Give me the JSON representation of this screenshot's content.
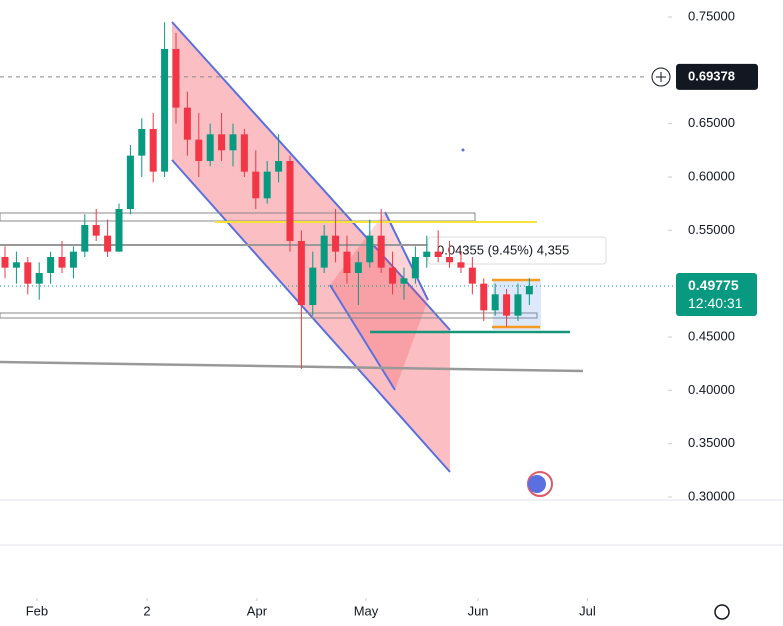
{
  "chart_data": {
    "type": "candlestick",
    "x": [
      0,
      1,
      2,
      3,
      4,
      5,
      6,
      7,
      8,
      9,
      10,
      11,
      12,
      13,
      14,
      15,
      16,
      17,
      18,
      19,
      20,
      21,
      22,
      23,
      24,
      25,
      26,
      27,
      28,
      29,
      30,
      31,
      32,
      33,
      34,
      35,
      36,
      37,
      38,
      39,
      40,
      41,
      42,
      43,
      44,
      45,
      46
    ],
    "open": [
      0.525,
      0.515,
      0.52,
      0.5,
      0.51,
      0.525,
      0.515,
      0.53,
      0.555,
      0.545,
      0.53,
      0.57,
      0.62,
      0.645,
      0.605,
      0.72,
      0.665,
      0.635,
      0.615,
      0.64,
      0.625,
      0.64,
      0.605,
      0.58,
      0.605,
      0.615,
      0.54,
      0.48,
      0.515,
      0.545,
      0.53,
      0.51,
      0.52,
      0.545,
      0.515,
      0.5,
      0.505,
      0.525,
      0.53,
      0.525,
      0.52,
      0.515,
      0.5,
      0.475,
      0.49,
      0.47,
      0.49
    ],
    "high": [
      0.535,
      0.53,
      0.525,
      0.52,
      0.53,
      0.54,
      0.535,
      0.565,
      0.57,
      0.56,
      0.575,
      0.63,
      0.655,
      0.66,
      0.745,
      0.735,
      0.68,
      0.66,
      0.65,
      0.66,
      0.65,
      0.645,
      0.625,
      0.615,
      0.64,
      0.62,
      0.55,
      0.53,
      0.555,
      0.57,
      0.545,
      0.53,
      0.56,
      0.57,
      0.53,
      0.515,
      0.535,
      0.545,
      0.55,
      0.54,
      0.53,
      0.525,
      0.505,
      0.5,
      0.495,
      0.5,
      0.505
    ],
    "low": [
      0.505,
      0.5,
      0.49,
      0.485,
      0.5,
      0.51,
      0.505,
      0.525,
      0.54,
      0.525,
      0.53,
      0.565,
      0.6,
      0.595,
      0.6,
      0.65,
      0.62,
      0.6,
      0.61,
      0.615,
      0.61,
      0.6,
      0.57,
      0.575,
      0.595,
      0.53,
      0.42,
      0.47,
      0.51,
      0.52,
      0.5,
      0.48,
      0.515,
      0.51,
      0.49,
      0.485,
      0.5,
      0.515,
      0.52,
      0.515,
      0.51,
      0.49,
      0.465,
      0.47,
      0.46,
      0.465,
      0.48
    ],
    "close": [
      0.515,
      0.52,
      0.5,
      0.51,
      0.525,
      0.515,
      0.53,
      0.555,
      0.545,
      0.53,
      0.57,
      0.62,
      0.645,
      0.605,
      0.72,
      0.665,
      0.635,
      0.615,
      0.64,
      0.625,
      0.64,
      0.605,
      0.58,
      0.605,
      0.615,
      0.54,
      0.48,
      0.515,
      0.545,
      0.53,
      0.51,
      0.52,
      0.545,
      0.515,
      0.5,
      0.505,
      0.525,
      0.53,
      0.525,
      0.52,
      0.515,
      0.5,
      0.475,
      0.49,
      0.47,
      0.49,
      0.49775
    ],
    "up_color": "#089981",
    "down_color": "#f23645",
    "xlim": [
      -0.44,
      57.9
    ],
    "xticks": [
      {
        "value": 2.8,
        "label": "Feb"
      },
      {
        "value": 12.46,
        "label": "2"
      },
      {
        "value": 22.1,
        "label": "Apr"
      },
      {
        "value": 31.67,
        "label": "May"
      },
      {
        "value": 41.5,
        "label": "Jun"
      },
      {
        "value": 51.1,
        "label": "Jul"
      }
    ],
    "ylim": [
      0.2972,
      0.7659
    ],
    "yticks": [
      {
        "value": 0.75,
        "label": "0.75000"
      },
      {
        "value": 0.65,
        "label": "0.65000"
      },
      {
        "value": 0.6,
        "label": "0.60000"
      },
      {
        "value": 0.55,
        "label": "0.55000"
      },
      {
        "value": 0.45,
        "label": "0.45000"
      },
      {
        "value": 0.4,
        "label": "0.40000"
      },
      {
        "value": 0.35,
        "label": "0.35000"
      },
      {
        "value": 0.3,
        "label": "0.30000"
      }
    ],
    "price_line": {
      "value": 0.69378,
      "label": "0.69378"
    },
    "last_price": {
      "value": 0.49775,
      "label": "0.49775",
      "countdown": "12:40:31"
    },
    "measure": "0.04355 (9.45%) 4,355"
  }
}
